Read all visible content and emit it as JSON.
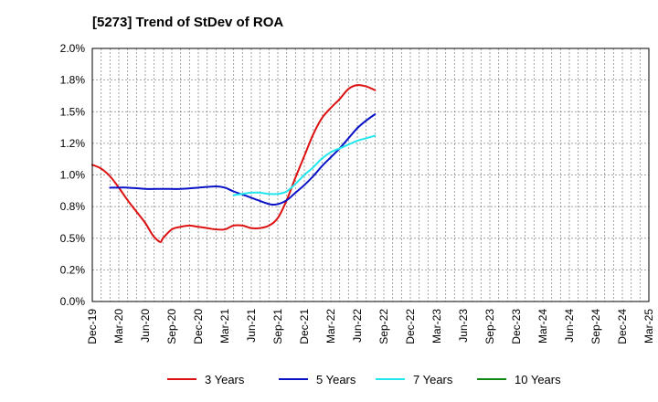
{
  "chart_data": {
    "type": "line",
    "title": "[5273]  Trend of StDev of ROA",
    "xlabel": "",
    "ylabel": "",
    "x_tick_labels": [
      "Dec-19",
      "Mar-20",
      "Jun-20",
      "Sep-20",
      "Dec-20",
      "Mar-21",
      "Jun-21",
      "Sep-21",
      "Dec-21",
      "Mar-22",
      "Jun-22",
      "Sep-22",
      "Dec-22",
      "Mar-23",
      "Jun-23",
      "Sep-23",
      "Dec-23",
      "Mar-24",
      "Jun-24",
      "Sep-24",
      "Dec-24",
      "Mar-25"
    ],
    "y_tick_labels": [
      "0.0%",
      "0.2%",
      "0.5%",
      "0.8%",
      "1.0%",
      "1.2%",
      "1.5%",
      "1.8%",
      "2.0%"
    ],
    "ylim": [
      0,
      2.0
    ],
    "grid": true,
    "legend_position": "bottom",
    "series": [
      {
        "name": "3 Years",
        "color": "#dd1111",
        "points": [
          [
            0,
            1.08
          ],
          [
            1,
            1.05
          ],
          [
            2,
            0.99
          ],
          [
            3,
            0.9
          ],
          [
            4,
            0.8
          ],
          [
            5,
            0.71
          ],
          [
            6,
            0.62
          ],
          [
            6.6,
            0.55
          ],
          [
            7,
            0.51
          ],
          [
            7.7,
            0.47
          ],
          [
            8,
            0.5
          ],
          [
            9,
            0.57
          ],
          [
            10,
            0.59
          ],
          [
            11,
            0.6
          ],
          [
            12,
            0.59
          ],
          [
            13,
            0.58
          ],
          [
            14,
            0.57
          ],
          [
            15,
            0.57
          ],
          [
            16,
            0.6
          ],
          [
            17,
            0.6
          ],
          [
            18,
            0.58
          ],
          [
            19,
            0.58
          ],
          [
            20,
            0.6
          ],
          [
            21,
            0.66
          ],
          [
            22,
            0.8
          ],
          [
            23,
            0.98
          ],
          [
            24,
            1.15
          ],
          [
            25,
            1.32
          ],
          [
            26,
            1.45
          ],
          [
            27,
            1.53
          ],
          [
            28,
            1.6
          ],
          [
            29,
            1.68
          ],
          [
            30,
            1.71
          ],
          [
            31,
            1.7
          ],
          [
            32,
            1.67
          ]
        ]
      },
      {
        "name": "5 Years",
        "color": "#0a12c8",
        "points": [
          [
            2,
            0.9
          ],
          [
            3,
            0.9
          ],
          [
            4,
            0.9
          ],
          [
            6,
            0.89
          ],
          [
            8,
            0.89
          ],
          [
            10,
            0.89
          ],
          [
            12,
            0.9
          ],
          [
            14,
            0.91
          ],
          [
            15,
            0.9
          ],
          [
            16,
            0.87
          ],
          [
            18,
            0.82
          ],
          [
            20,
            0.77
          ],
          [
            21,
            0.77
          ],
          [
            22,
            0.8
          ],
          [
            23,
            0.86
          ],
          [
            24,
            0.92
          ],
          [
            25,
            0.99
          ],
          [
            26,
            1.07
          ],
          [
            27,
            1.14
          ],
          [
            28,
            1.21
          ],
          [
            29,
            1.29
          ],
          [
            30,
            1.37
          ],
          [
            31,
            1.43
          ],
          [
            32,
            1.48
          ]
        ]
      },
      {
        "name": "7 Years",
        "color": "#22e6ee",
        "points": [
          [
            16,
            0.84
          ],
          [
            17,
            0.85
          ],
          [
            18,
            0.86
          ],
          [
            19,
            0.86
          ],
          [
            20,
            0.85
          ],
          [
            21,
            0.85
          ],
          [
            22,
            0.87
          ],
          [
            23,
            0.93
          ],
          [
            24,
            1.0
          ],
          [
            25,
            1.06
          ],
          [
            26,
            1.13
          ],
          [
            27,
            1.18
          ],
          [
            28,
            1.21
          ],
          [
            29,
            1.24
          ],
          [
            30,
            1.27
          ],
          [
            31,
            1.29
          ],
          [
            32,
            1.31
          ]
        ]
      },
      {
        "name": "10 Years",
        "color": "#118811",
        "points": []
      }
    ]
  }
}
